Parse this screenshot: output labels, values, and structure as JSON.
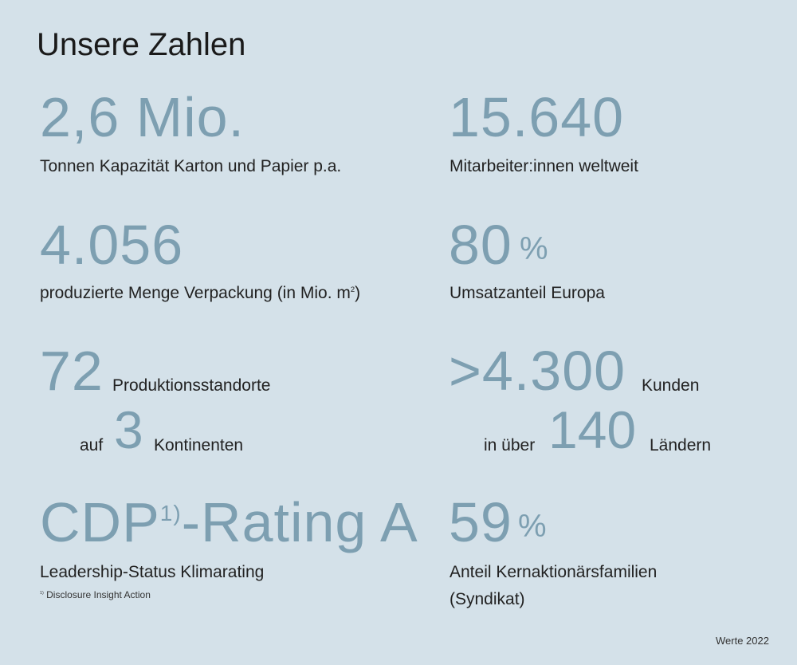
{
  "title": "Unsere Zahlen",
  "stats": {
    "capacity": {
      "value": "2,6 Mio.",
      "label": "Tonnen Kapazität Karton und Papier p.a."
    },
    "employees": {
      "value": "15.640",
      "label": "Mitarbeiter:innen weltweit"
    },
    "packaging": {
      "value": "4.056",
      "label": "produzierte Menge Verpackung (in Mio. m",
      "label_sup": "2",
      "label_end": ")"
    },
    "europe": {
      "value": "80",
      "unit": "%",
      "label": "Umsatzanteil Europa"
    },
    "sites": {
      "value": "72",
      "label": "Produktionsstandorte",
      "pre2": "auf",
      "value2": "3",
      "label2": "Kontinenten"
    },
    "customers": {
      "value": ">4.300",
      "label": "Kunden",
      "pre2": "in über",
      "value2": "140",
      "label2": "Ländern"
    },
    "cdp": {
      "value_a": "CDP",
      "value_sup": "1)",
      "value_b": "-Rating A",
      "label": "Leadership-Status Klimarating",
      "footnote_mark": "1)",
      "footnote": "Disclosure Insight Action"
    },
    "families": {
      "value": "59",
      "unit": "%",
      "label_line1": "Anteil Kernaktionärsfamilien",
      "label_line2": "(Syndikat)"
    }
  },
  "footer": "Werte 2022"
}
